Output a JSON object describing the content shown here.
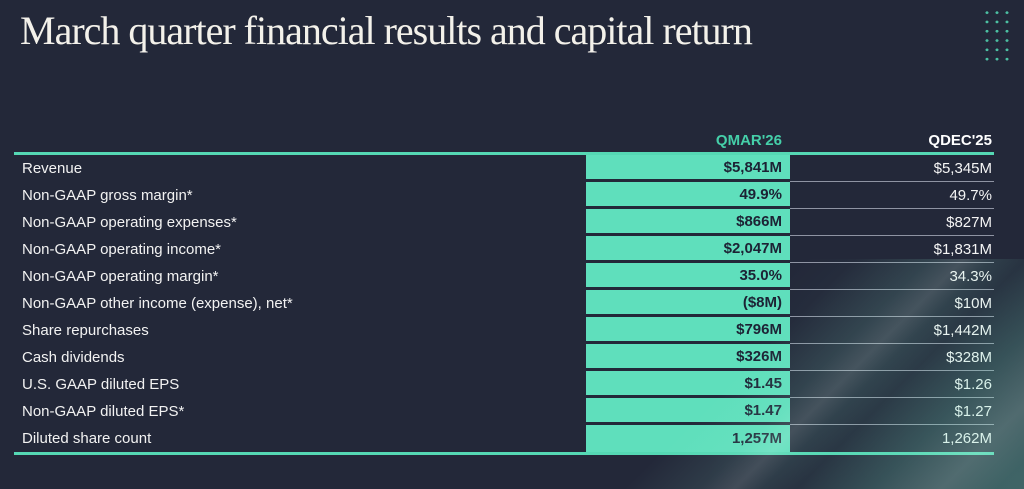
{
  "slide": {
    "title": "March quarter financial results and capital return"
  },
  "table": {
    "columns": [
      "QMAR'26",
      "QDEC'25"
    ],
    "rows": [
      {
        "label": "Revenue",
        "qmar": "$5,841M",
        "qdec": "$5,345M"
      },
      {
        "label": "Non-GAAP gross margin*",
        "qmar": "49.9%",
        "qdec": "49.7%"
      },
      {
        "label": "Non-GAAP operating expenses*",
        "qmar": "$866M",
        "qdec": "$827M"
      },
      {
        "label": "Non-GAAP operating income*",
        "qmar": "$2,047M",
        "qdec": "$1,831M"
      },
      {
        "label": "Non-GAAP operating margin*",
        "qmar": "35.0%",
        "qdec": "34.3%"
      },
      {
        "label": "Non-GAAP other income (expense), net*",
        "qmar": "($8M)",
        "qdec": "$10M"
      },
      {
        "label": "Share repurchases",
        "qmar": "$796M",
        "qdec": "$1,442M"
      },
      {
        "label": "Cash dividends",
        "qmar": "$326M",
        "qdec": "$328M"
      },
      {
        "label": "U.S. GAAP diluted EPS",
        "qmar": "$1.45",
        "qdec": "$1.26"
      },
      {
        "label": "Non-GAAP diluted EPS*",
        "qmar": "$1.47",
        "qdec": "$1.27"
      },
      {
        "label": "Diluted share count",
        "qmar": "1,257M",
        "qdec": "1,262M"
      }
    ]
  },
  "colors": {
    "background": "#232839",
    "highlight_column_fill": "#5FDFBC",
    "accent_rule_teal": "#55D8B4",
    "header_teal_text": "#45CFA9",
    "dark_value_text": "#1C2234",
    "white_text": "#F2F2F2",
    "light_separator": "#8F94A3",
    "dot_grid_teal": "#4FD1AE"
  },
  "decorations": {
    "dot_grid": "teal-dot-grid",
    "corner_glow": "teal-diagonal-light-streaks"
  }
}
